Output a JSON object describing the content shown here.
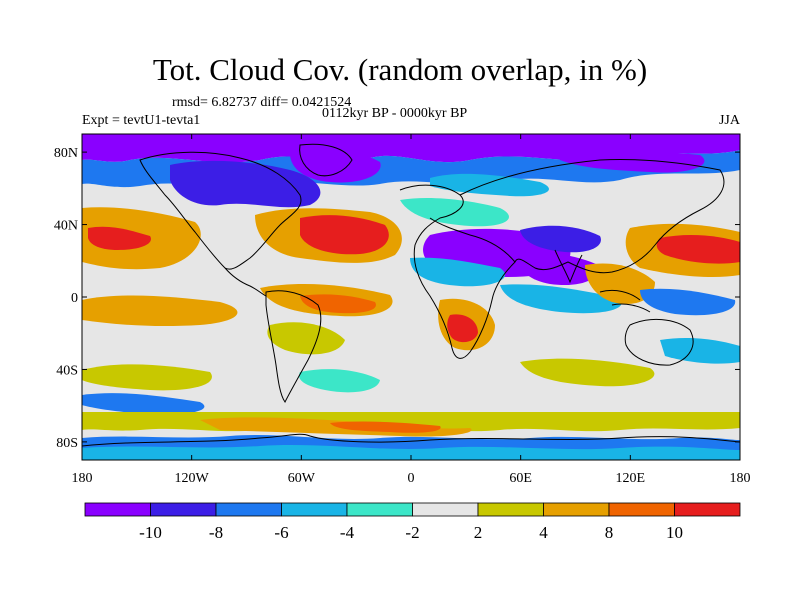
{
  "title": "Tot. Cloud Cov. (random overlap, in %)",
  "stats": "rmsd= 6.82737 diff= 0.0421524",
  "period": "0112kyr BP - 0000kyr BP",
  "experiment": "Expt = tevtU1-tevta1",
  "season": "JJA",
  "lat_ticks": [
    "80N",
    "40N",
    "0",
    "40S",
    "80S"
  ],
  "lat_values": [
    80,
    40,
    0,
    -40,
    -80
  ],
  "lon_ticks": [
    "180",
    "120W",
    "60W",
    "0",
    "60E",
    "120E",
    "180"
  ],
  "lon_values": [
    -180,
    -120,
    -60,
    0,
    60,
    120,
    180
  ],
  "colorbar": {
    "labels": [
      "-10",
      "-8",
      "-6",
      "-4",
      "-2",
      "2",
      "4",
      "8",
      "10"
    ],
    "colors": [
      "#8a00ff",
      "#3c1ee6",
      "#1e78f0",
      "#19b4e6",
      "#3ce6c8",
      "#e6e6e6",
      "#c8c800",
      "#e6a000",
      "#f06400",
      "#e61e1e"
    ]
  },
  "colors": {
    "neutral": "#e6e6e6",
    "strong_negative": "#8a00ff",
    "strong_positive": "#e61e1e"
  }
}
